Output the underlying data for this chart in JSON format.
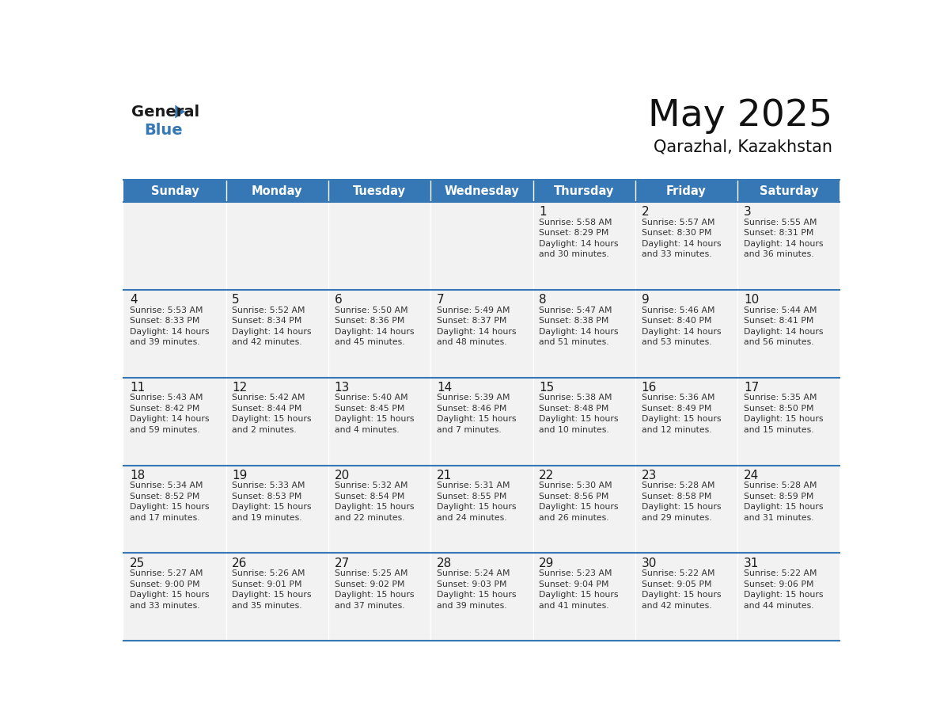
{
  "title": "May 2025",
  "subtitle": "Qarazhal, Kazakhstan",
  "header_color": "#3578b5",
  "header_text_color": "#ffffff",
  "cell_bg": "#f2f2f2",
  "text_color": "#222222",
  "border_color": "#3578b5",
  "days_of_week": [
    "Sunday",
    "Monday",
    "Tuesday",
    "Wednesday",
    "Thursday",
    "Friday",
    "Saturday"
  ],
  "weeks": [
    [
      {
        "day": "",
        "info": ""
      },
      {
        "day": "",
        "info": ""
      },
      {
        "day": "",
        "info": ""
      },
      {
        "day": "",
        "info": ""
      },
      {
        "day": "1",
        "info": "Sunrise: 5:58 AM\nSunset: 8:29 PM\nDaylight: 14 hours\nand 30 minutes."
      },
      {
        "day": "2",
        "info": "Sunrise: 5:57 AM\nSunset: 8:30 PM\nDaylight: 14 hours\nand 33 minutes."
      },
      {
        "day": "3",
        "info": "Sunrise: 5:55 AM\nSunset: 8:31 PM\nDaylight: 14 hours\nand 36 minutes."
      }
    ],
    [
      {
        "day": "4",
        "info": "Sunrise: 5:53 AM\nSunset: 8:33 PM\nDaylight: 14 hours\nand 39 minutes."
      },
      {
        "day": "5",
        "info": "Sunrise: 5:52 AM\nSunset: 8:34 PM\nDaylight: 14 hours\nand 42 minutes."
      },
      {
        "day": "6",
        "info": "Sunrise: 5:50 AM\nSunset: 8:36 PM\nDaylight: 14 hours\nand 45 minutes."
      },
      {
        "day": "7",
        "info": "Sunrise: 5:49 AM\nSunset: 8:37 PM\nDaylight: 14 hours\nand 48 minutes."
      },
      {
        "day": "8",
        "info": "Sunrise: 5:47 AM\nSunset: 8:38 PM\nDaylight: 14 hours\nand 51 minutes."
      },
      {
        "day": "9",
        "info": "Sunrise: 5:46 AM\nSunset: 8:40 PM\nDaylight: 14 hours\nand 53 minutes."
      },
      {
        "day": "10",
        "info": "Sunrise: 5:44 AM\nSunset: 8:41 PM\nDaylight: 14 hours\nand 56 minutes."
      }
    ],
    [
      {
        "day": "11",
        "info": "Sunrise: 5:43 AM\nSunset: 8:42 PM\nDaylight: 14 hours\nand 59 minutes."
      },
      {
        "day": "12",
        "info": "Sunrise: 5:42 AM\nSunset: 8:44 PM\nDaylight: 15 hours\nand 2 minutes."
      },
      {
        "day": "13",
        "info": "Sunrise: 5:40 AM\nSunset: 8:45 PM\nDaylight: 15 hours\nand 4 minutes."
      },
      {
        "day": "14",
        "info": "Sunrise: 5:39 AM\nSunset: 8:46 PM\nDaylight: 15 hours\nand 7 minutes."
      },
      {
        "day": "15",
        "info": "Sunrise: 5:38 AM\nSunset: 8:48 PM\nDaylight: 15 hours\nand 10 minutes."
      },
      {
        "day": "16",
        "info": "Sunrise: 5:36 AM\nSunset: 8:49 PM\nDaylight: 15 hours\nand 12 minutes."
      },
      {
        "day": "17",
        "info": "Sunrise: 5:35 AM\nSunset: 8:50 PM\nDaylight: 15 hours\nand 15 minutes."
      }
    ],
    [
      {
        "day": "18",
        "info": "Sunrise: 5:34 AM\nSunset: 8:52 PM\nDaylight: 15 hours\nand 17 minutes."
      },
      {
        "day": "19",
        "info": "Sunrise: 5:33 AM\nSunset: 8:53 PM\nDaylight: 15 hours\nand 19 minutes."
      },
      {
        "day": "20",
        "info": "Sunrise: 5:32 AM\nSunset: 8:54 PM\nDaylight: 15 hours\nand 22 minutes."
      },
      {
        "day": "21",
        "info": "Sunrise: 5:31 AM\nSunset: 8:55 PM\nDaylight: 15 hours\nand 24 minutes."
      },
      {
        "day": "22",
        "info": "Sunrise: 5:30 AM\nSunset: 8:56 PM\nDaylight: 15 hours\nand 26 minutes."
      },
      {
        "day": "23",
        "info": "Sunrise: 5:28 AM\nSunset: 8:58 PM\nDaylight: 15 hours\nand 29 minutes."
      },
      {
        "day": "24",
        "info": "Sunrise: 5:28 AM\nSunset: 8:59 PM\nDaylight: 15 hours\nand 31 minutes."
      }
    ],
    [
      {
        "day": "25",
        "info": "Sunrise: 5:27 AM\nSunset: 9:00 PM\nDaylight: 15 hours\nand 33 minutes."
      },
      {
        "day": "26",
        "info": "Sunrise: 5:26 AM\nSunset: 9:01 PM\nDaylight: 15 hours\nand 35 minutes."
      },
      {
        "day": "27",
        "info": "Sunrise: 5:25 AM\nSunset: 9:02 PM\nDaylight: 15 hours\nand 37 minutes."
      },
      {
        "day": "28",
        "info": "Sunrise: 5:24 AM\nSunset: 9:03 PM\nDaylight: 15 hours\nand 39 minutes."
      },
      {
        "day": "29",
        "info": "Sunrise: 5:23 AM\nSunset: 9:04 PM\nDaylight: 15 hours\nand 41 minutes."
      },
      {
        "day": "30",
        "info": "Sunrise: 5:22 AM\nSunset: 9:05 PM\nDaylight: 15 hours\nand 42 minutes."
      },
      {
        "day": "31",
        "info": "Sunrise: 5:22 AM\nSunset: 9:06 PM\nDaylight: 15 hours\nand 44 minutes."
      }
    ]
  ]
}
